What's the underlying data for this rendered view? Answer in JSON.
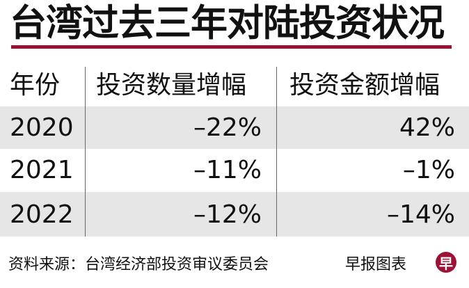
{
  "title": "台湾过去三年对陆投资状况",
  "accent_color": "#9b1237",
  "table": {
    "headers": [
      "年份",
      "投资数量增幅",
      "投资金额增幅"
    ],
    "rows": [
      [
        "2020",
        "–22%",
        "42%"
      ],
      [
        "2021",
        "–11%",
        "–1%"
      ],
      [
        "2022",
        "–12%",
        "–14%"
      ]
    ]
  },
  "footer": {
    "source": "资料来源：台湾经济部投资审议委员会",
    "credit": "早报图表",
    "logo_text": "早"
  }
}
